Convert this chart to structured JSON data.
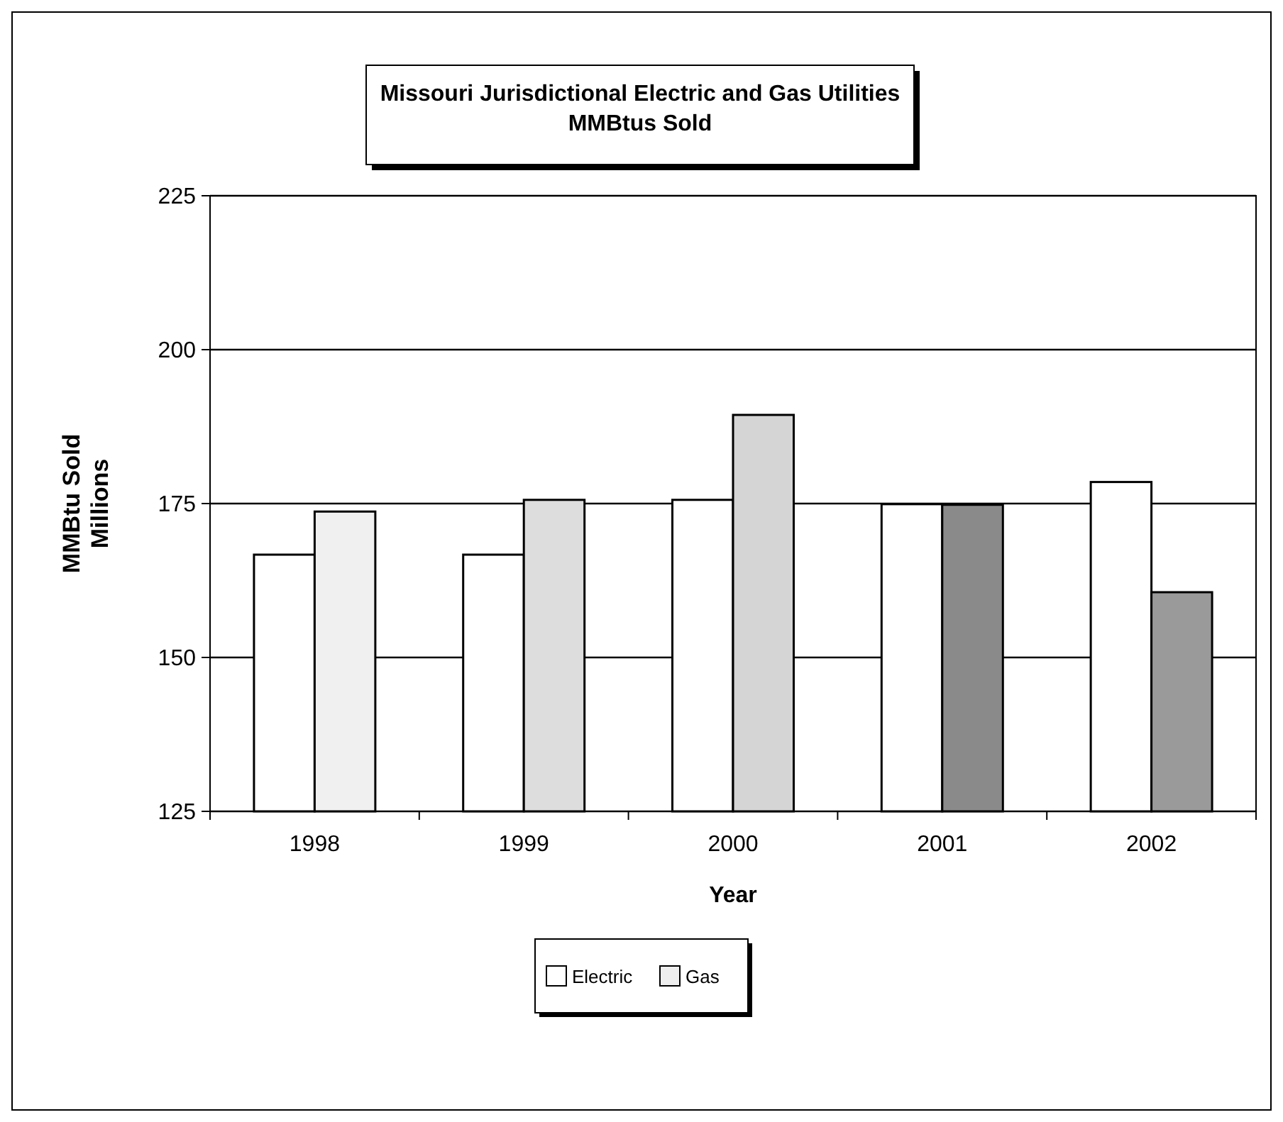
{
  "chart_data": {
    "type": "bar",
    "title": "Missouri Jurisdictional Electric and Gas Utilities\nMMBtus Sold",
    "xlabel": "Year",
    "ylabel": "MMBtu Sold\nMillions",
    "categories": [
      "1998",
      "1999",
      "2000",
      "2001",
      "2002"
    ],
    "series": [
      {
        "name": "Electric",
        "color": "#ffffff",
        "values": [
          166.7,
          166.7,
          175.6,
          174.9,
          178.5
        ]
      },
      {
        "name": "Gas",
        "color": "#eeeeee",
        "colors": [
          "#f0f0f0",
          "#dddddd",
          "#d5d5d5",
          "#8a8a8a",
          "#9a9a9a"
        ],
        "values": [
          173.7,
          175.6,
          189.4,
          174.8,
          160.6
        ]
      }
    ],
    "ylim": [
      125,
      225
    ],
    "yticks": [
      125,
      150,
      175,
      200,
      225
    ],
    "grid": "y",
    "legend": "bottom"
  }
}
